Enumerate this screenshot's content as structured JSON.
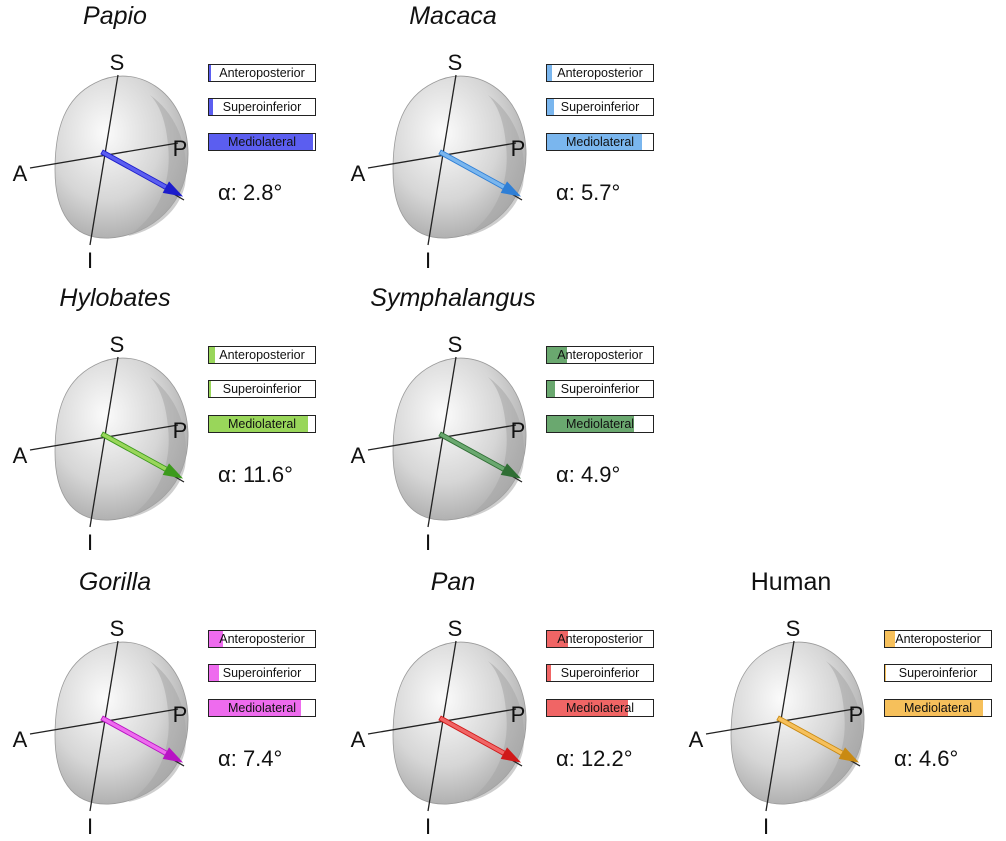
{
  "axes": {
    "superior": "S",
    "inferior": "I",
    "anterior": "A",
    "posterior": "P"
  },
  "bar_labels": [
    "Anteroposterior",
    "Superoinferior",
    "Mediolateral"
  ],
  "panels": [
    {
      "title": "Papio",
      "italic": true,
      "color": "#5b5ef0",
      "arrow_dark": "#1c1ccc",
      "bars": [
        0.02,
        0.04,
        0.98
      ],
      "alpha": "α: 2.8°"
    },
    {
      "title": "Macaca",
      "italic": true,
      "color": "#7ab6ee",
      "arrow_dark": "#2f7fd6",
      "bars": [
        0.05,
        0.07,
        0.9
      ],
      "alpha": "α: 5.7°"
    },
    {
      "title": "Hylobates",
      "italic": true,
      "color": "#99d65a",
      "arrow_dark": "#3c9a1c",
      "bars": [
        0.06,
        0.02,
        0.93
      ],
      "alpha": "α: 11.6°"
    },
    {
      "title": "Symphalangus",
      "italic": true,
      "color": "#6aa86f",
      "arrow_dark": "#2f6e34",
      "bars": [
        0.19,
        0.08,
        0.82
      ],
      "alpha": "α: 4.9°"
    },
    {
      "title": "Gorilla",
      "italic": true,
      "color": "#ee6bee",
      "arrow_dark": "#b812c4",
      "bars": [
        0.13,
        0.09,
        0.87
      ],
      "alpha": "α: 7.4°"
    },
    {
      "title": "Pan",
      "italic": true,
      "color": "#f06565",
      "arrow_dark": "#d01818",
      "bars": [
        0.2,
        0.04,
        0.76
      ],
      "alpha": "α: 12.2°"
    },
    {
      "title": "Human",
      "italic": false,
      "color": "#f6c05b",
      "arrow_dark": "#c98a12",
      "bars": [
        0.09,
        0.01,
        0.92
      ],
      "alpha": "α: 4.6°"
    }
  ]
}
